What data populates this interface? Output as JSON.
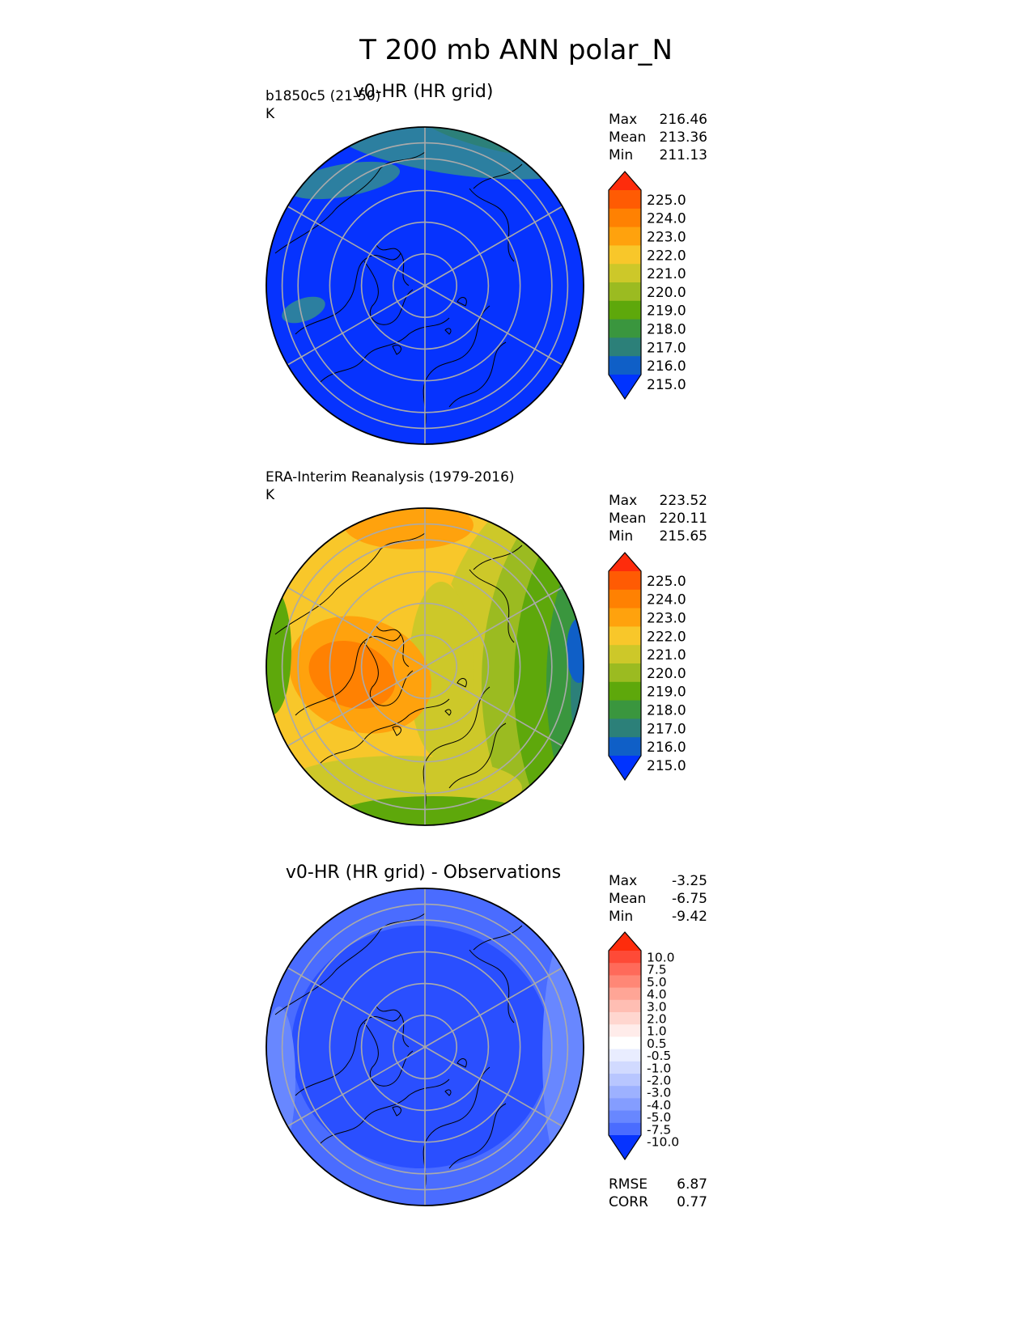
{
  "figure": {
    "title": "T 200 mb ANN polar_N"
  },
  "chart_data": [
    {
      "type": "heatmap",
      "projection": "north polar stereographic",
      "title": "v0-HR (HR grid)",
      "left_label": "b1850c5 (21-50)",
      "units": "K",
      "stats": [
        {
          "label": "Max",
          "value": "216.46"
        },
        {
          "label": "Mean",
          "value": "213.36"
        },
        {
          "label": "Min",
          "value": "211.13"
        }
      ],
      "colorbar": {
        "ticks": [
          "225.0",
          "224.0",
          "223.0",
          "222.0",
          "221.0",
          "220.0",
          "219.0",
          "218.0",
          "217.0",
          "216.0",
          "215.0"
        ],
        "colors": [
          "#fe2c0c",
          "#ff5b03",
          "#ff8102",
          "#ffa20d",
          "#f8c72a",
          "#cdc829",
          "#9bbb21",
          "#5ea80b",
          "#3a963e",
          "#2c8079",
          "#0f5fc7",
          "#0033ff"
        ],
        "extend": "both"
      },
      "field": {
        "base": "#0633fe",
        "mid": "#2c7fa0",
        "high": "#2c8079"
      }
    },
    {
      "type": "heatmap",
      "projection": "north polar stereographic",
      "title": "",
      "left_label": "ERA-Interim Reanalysis (1979-2016)",
      "units": "K",
      "stats": [
        {
          "label": "Max",
          "value": "223.52"
        },
        {
          "label": "Mean",
          "value": "220.11"
        },
        {
          "label": "Min",
          "value": "215.65"
        }
      ],
      "colorbar": {
        "ticks": [
          "225.0",
          "224.0",
          "223.0",
          "222.0",
          "221.0",
          "220.0",
          "219.0",
          "218.0",
          "217.0",
          "216.0",
          "215.0"
        ],
        "colors": [
          "#fe2c0c",
          "#ff5b03",
          "#ff8102",
          "#ffa20d",
          "#f8c72a",
          "#cdc829",
          "#9bbb21",
          "#5ea80b",
          "#3a963e",
          "#2c8079",
          "#0f5fc7",
          "#0033ff"
        ],
        "extend": "both"
      },
      "field": {
        "base": "#f8c72a",
        "warm": "#ffa20d",
        "hot": "#ff8102",
        "green1": "#cdc829",
        "green2": "#9bbb21",
        "green3": "#5ea80b",
        "green4": "#3a963e",
        "teal": "#2c8079",
        "blue": "#0f5fc7"
      }
    },
    {
      "type": "heatmap",
      "projection": "north polar stereographic",
      "title": "v0-HR (HR grid) - Observations",
      "left_label": "",
      "units": "",
      "stats": [
        {
          "label": "Max",
          "value": "-3.25"
        },
        {
          "label": "Mean",
          "value": "-6.75"
        },
        {
          "label": "Min",
          "value": "-9.42"
        }
      ],
      "bottom_stats": [
        {
          "label": "RMSE",
          "value": "6.87"
        },
        {
          "label": "CORR",
          "value": "0.77"
        }
      ],
      "colorbar": {
        "ticks": [
          "10.0",
          "7.5",
          "5.0",
          "4.0",
          "3.0",
          "2.0",
          "1.0",
          "0.5",
          "-0.5",
          "-1.0",
          "-2.0",
          "-3.0",
          "-4.0",
          "-5.0",
          "-7.5",
          "-10.0"
        ],
        "colors": [
          "#fe2c0c",
          "#fe4a37",
          "#ff6a5a",
          "#ff8776",
          "#ffa596",
          "#ffbeb3",
          "#ffd6cf",
          "#ffecea",
          "#ffffff",
          "#e9edff",
          "#d1daff",
          "#b8c6ff",
          "#9db1ff",
          "#849dff",
          "#6887ff",
          "#4a6cff",
          "#0633fe"
        ],
        "extend": "both"
      },
      "field": {
        "base": "#2a4fff",
        "light": "#4a6cff",
        "lighter": "#6887ff"
      }
    }
  ]
}
